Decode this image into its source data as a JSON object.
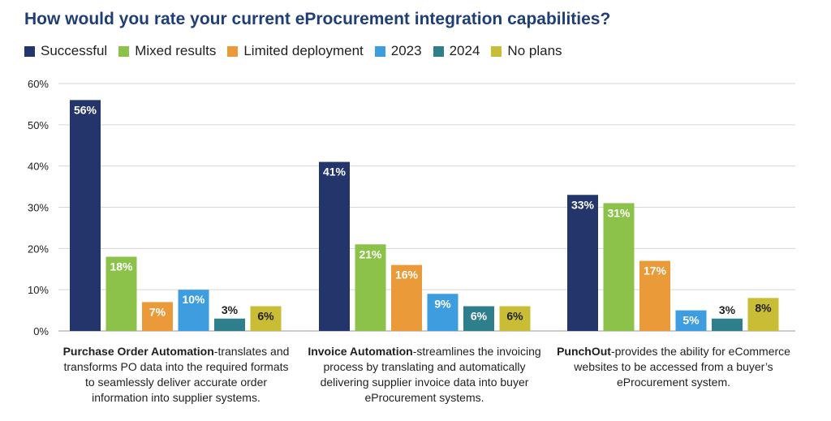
{
  "chart_data": {
    "type": "bar",
    "title": "How would you rate your current eProcurement integration capabilities?",
    "xlabel": "",
    "ylabel": "",
    "ylim": [
      0,
      60
    ],
    "yticks": [
      "0%",
      "10%",
      "20%",
      "30%",
      "40%",
      "50%",
      "60%"
    ],
    "ytick_values": [
      0,
      10,
      20,
      30,
      40,
      50,
      60
    ],
    "grid": true,
    "legend_position": "top",
    "categories": [
      {
        "title": "Purchase Order Automation",
        "description": "-translates and transforms PO data into the required formats to seamlessly deliver accurate order information into supplier systems."
      },
      {
        "title": "Invoice Automation",
        "description": "-streamlines the invoicing process by translating and automatically delivering supplier invoice data into buyer eProcurement systems."
      },
      {
        "title": "PunchOut",
        "description": "-provides the ability for eCommerce websites to be accessed from a buyer’s eProcurement system."
      }
    ],
    "series": [
      {
        "name": "Successful",
        "color": "#23356b",
        "values": [
          56,
          41,
          33
        ],
        "labels": [
          "56%",
          "41%",
          "33%"
        ]
      },
      {
        "name": "Mixed results",
        "color": "#8cc24a",
        "values": [
          18,
          21,
          31
        ],
        "labels": [
          "18%",
          "21%",
          "31%"
        ]
      },
      {
        "name": "Limited deployment",
        "color": "#eb9a3a",
        "values": [
          7,
          16,
          17
        ],
        "labels": [
          "7%",
          "16%",
          "17%"
        ]
      },
      {
        "name": "2023",
        "color": "#3e9ddf",
        "values": [
          10,
          9,
          5
        ],
        "labels": [
          "10%",
          "9%",
          "5%"
        ]
      },
      {
        "name": "2024",
        "color": "#2f7e8b",
        "values": [
          3,
          6,
          3
        ],
        "labels": [
          "3%",
          "6%",
          "3%"
        ]
      },
      {
        "name": "No plans",
        "color": "#c9bd35",
        "values": [
          6,
          6,
          8
        ],
        "labels": [
          "6%",
          "6%",
          "8%"
        ]
      }
    ]
  }
}
